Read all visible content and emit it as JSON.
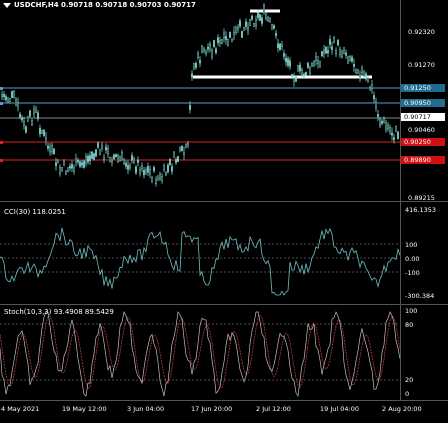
{
  "header": {
    "symbol_line": "USDCHF,H4  0.90718 0.90718 0.90703 0.90717"
  },
  "price_scale": {
    "labels": [
      "0.92320",
      "0.91270",
      "0.90460",
      "0.89215"
    ]
  },
  "price_tags": [
    {
      "text": "0.91250",
      "bg": "#1f6e92",
      "fg": "#ffffff"
    },
    {
      "text": "0.90950",
      "bg": "#1f6e92",
      "fg": "#ffffff"
    },
    {
      "text": "0.90717",
      "bg": "#ffffff",
      "fg": "#000000"
    },
    {
      "text": "0.90250",
      "bg": "#d01010",
      "fg": "#ffffff"
    },
    {
      "text": "0.89890",
      "bg": "#d01010",
      "fg": "#ffffff"
    }
  ],
  "cci": {
    "title": "CCI(30) 118.0251",
    "scale": [
      "416.1353",
      "100",
      "0.00",
      "-100",
      "-300.384"
    ]
  },
  "stoch": {
    "title": "Stoch(10,3,3) 93.4908 89.5429",
    "scale": [
      "100",
      "80",
      "20",
      "0"
    ]
  },
  "time_axis": {
    "labels": [
      "4 May 2021",
      "19 May 12:00",
      "3 Jun 04:00",
      "17 Jun 20:00",
      "2 Jul 12:00",
      "19 Jul 04:00",
      "2 Aug 20:00"
    ]
  },
  "colors": {
    "candle": "#7fd8d0",
    "level_blue": "#5a9bd5",
    "level_red": "#e02020",
    "cci_line": "#6fbfc0",
    "stoch_main": "#c0c0c0",
    "stoch_signal": "#d04040",
    "grid": "#666666"
  }
}
